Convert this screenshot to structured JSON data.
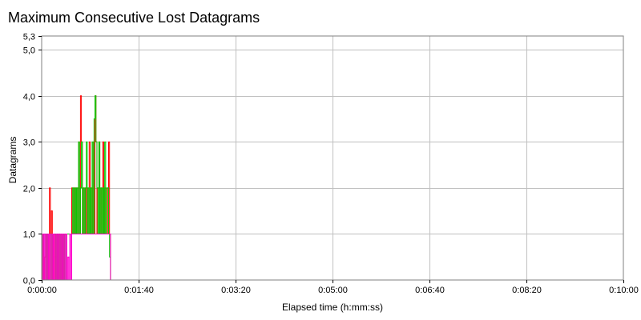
{
  "chart_data": {
    "type": "line",
    "title": "Maximum Consecutive Lost Datagrams",
    "xlabel": "Elapsed time (h:mm:ss)",
    "ylabel": "Datagrams",
    "xlim": [
      0,
      600
    ],
    "ylim": [
      0,
      5.3
    ],
    "x_ticks": [
      {
        "value": 0,
        "label": "0:00:00"
      },
      {
        "value": 100,
        "label": "0:01:40"
      },
      {
        "value": 200,
        "label": "0:03:20"
      },
      {
        "value": 300,
        "label": "0:05:00"
      },
      {
        "value": 400,
        "label": "0:06:40"
      },
      {
        "value": 500,
        "label": "0:08:20"
      },
      {
        "value": 600,
        "label": "0:10:00"
      }
    ],
    "y_ticks": [
      {
        "value": 0,
        "label": "0,0"
      },
      {
        "value": 1,
        "label": "1,0"
      },
      {
        "value": 2,
        "label": "2,0"
      },
      {
        "value": 3,
        "label": "3,0"
      },
      {
        "value": 4,
        "label": "4,0"
      },
      {
        "value": 5,
        "label": "5,0"
      },
      {
        "value": 5.3,
        "label": "5,3"
      }
    ],
    "grid": true,
    "series": [
      {
        "color": "#ff0000",
        "x": [
          0,
          1,
          2,
          3,
          4,
          5,
          6,
          7,
          8,
          9,
          10,
          11,
          12,
          13,
          14,
          15,
          16,
          17,
          18,
          19,
          20,
          21,
          22,
          23,
          24,
          25,
          26,
          27,
          28,
          29,
          30,
          31,
          32,
          33,
          34,
          35,
          36,
          37,
          38,
          39,
          40,
          41,
          42,
          43,
          44,
          45,
          46,
          47,
          48,
          49,
          50,
          51,
          52,
          53,
          54,
          55,
          56,
          57,
          58,
          59,
          60,
          61,
          62,
          63,
          64,
          65,
          66,
          67,
          68,
          69,
          70,
          71
        ],
        "y": [
          0,
          1,
          0,
          0.5,
          1,
          0,
          1,
          0,
          2,
          1,
          1.5,
          0,
          1,
          0,
          1,
          0,
          1,
          0,
          1,
          1,
          0,
          1,
          0,
          1,
          1,
          1,
          1,
          1,
          1,
          1,
          1,
          2,
          1,
          2,
          1,
          2,
          1,
          2,
          3,
          1,
          4,
          3,
          1,
          2,
          1,
          2,
          1,
          2,
          1,
          3,
          1,
          2,
          1,
          3,
          1,
          4,
          3,
          1,
          2,
          3,
          1,
          2,
          1,
          3,
          1,
          2,
          1,
          1,
          2,
          3,
          1,
          0
        ]
      },
      {
        "color": "#00cc00",
        "x": [
          0,
          1,
          2,
          3,
          4,
          5,
          6,
          7,
          8,
          9,
          10,
          11,
          12,
          13,
          14,
          15,
          16,
          17,
          18,
          19,
          20,
          21,
          22,
          23,
          24,
          25,
          26,
          27,
          28,
          29,
          30,
          31,
          32,
          33,
          34,
          35,
          36,
          37,
          38,
          39,
          40,
          41,
          42,
          43,
          44,
          45,
          46,
          47,
          48,
          49,
          50,
          51,
          52,
          53,
          54,
          55,
          56,
          57,
          58,
          59,
          60,
          61,
          62,
          63,
          64,
          65,
          66,
          67,
          68,
          69,
          70,
          71
        ],
        "y": [
          1,
          0,
          1,
          1,
          0,
          1,
          0,
          1,
          1,
          0,
          1,
          0,
          1,
          1,
          0,
          1,
          0,
          1,
          0,
          1,
          0,
          1,
          0,
          1,
          0,
          1,
          1,
          1,
          1,
          1,
          1,
          1,
          2,
          1,
          2,
          1,
          2,
          1,
          3,
          1,
          2,
          3,
          1,
          2,
          1,
          2,
          3,
          1,
          2,
          1,
          2,
          1,
          3,
          1,
          3.5,
          4,
          3,
          2,
          1,
          3,
          1,
          2,
          1,
          2,
          1,
          3,
          1,
          2,
          2,
          1,
          0.5,
          0
        ]
      },
      {
        "color": "#ff00cc",
        "x": [
          0,
          1,
          2,
          3,
          4,
          5,
          6,
          7,
          8,
          9,
          10,
          11,
          12,
          13,
          14,
          15,
          16,
          17,
          18,
          19,
          20,
          21,
          22,
          23,
          24,
          25,
          26,
          27,
          28,
          29,
          30,
          31,
          32,
          33,
          34,
          35,
          36,
          37,
          38,
          39,
          40,
          41,
          42,
          43,
          44,
          45,
          46,
          47,
          48,
          49,
          50,
          51,
          52,
          53,
          54,
          55,
          56,
          57,
          58,
          59,
          60,
          61,
          62,
          63,
          64,
          65,
          66,
          67,
          68,
          69,
          70,
          71
        ],
        "y": [
          0,
          1,
          0,
          1,
          0,
          1,
          0,
          1,
          0,
          1,
          0,
          1,
          0,
          1,
          0,
          1,
          0,
          1,
          0,
          1,
          0,
          1,
          0,
          1,
          0,
          1,
          0,
          0.5,
          0,
          1,
          0,
          1,
          1,
          1,
          1,
          1,
          1,
          1,
          1,
          1,
          1,
          1,
          1,
          1,
          1,
          1,
          1,
          1,
          1,
          1,
          1,
          1,
          1,
          1,
          1,
          1,
          1,
          1,
          1,
          1,
          1,
          1,
          1,
          1,
          1,
          1,
          1,
          1,
          1,
          1,
          1,
          0
        ]
      }
    ]
  }
}
